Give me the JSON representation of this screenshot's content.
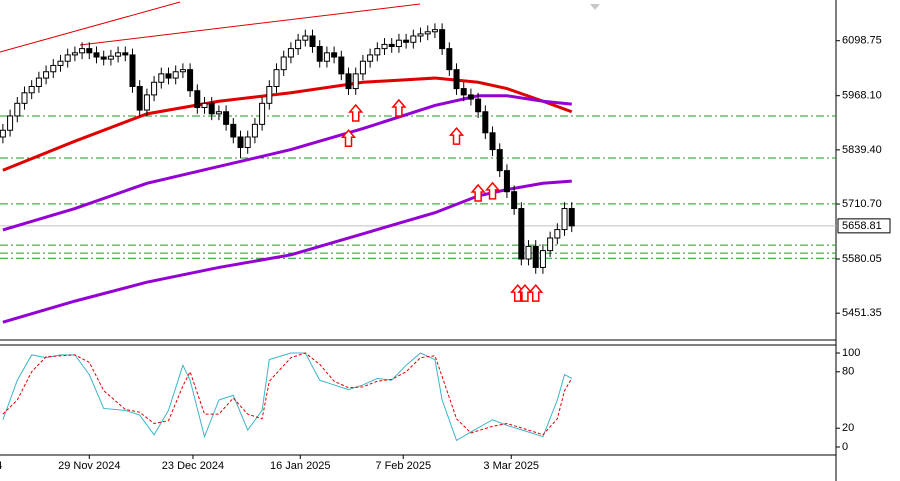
{
  "chart_data": [
    {
      "type": "candlestick",
      "xlim": [
        -0.4,
        115.7
      ],
      "ylim": [
        5387.6,
        6195.5
      ],
      "yticks": [
        {
          "value": 6098.75,
          "label": "6098.75"
        },
        {
          "value": 5968.1,
          "label": "5968.10"
        },
        {
          "value": 5839.4,
          "label": "5839.40"
        },
        {
          "value": 5710.7,
          "label": "5710.70"
        },
        5580.05,
        5451.35
      ],
      "up_color": "#ffffff",
      "down_color": "#000000",
      "ohlc": [
        [
          5870,
          5901,
          5855,
          5886
        ],
        [
          5886,
          5935,
          5871,
          5920
        ],
        [
          5920,
          5965,
          5905,
          5950
        ],
        [
          5950,
          5990,
          5935,
          5975
        ],
        [
          5975,
          6005,
          5960,
          5990
        ],
        [
          5990,
          6025,
          5975,
          6010
        ],
        [
          6010,
          6040,
          5995,
          6025
        ],
        [
          6025,
          6055,
          6010,
          6040
        ],
        [
          6040,
          6065,
          6025,
          6050
        ],
        [
          6050,
          6080,
          6035,
          6065
        ],
        [
          6065,
          6085,
          6050,
          6070
        ],
        [
          6070,
          6095,
          6055,
          6080
        ],
        [
          6080,
          6095,
          6055,
          6070
        ],
        [
          6070,
          6085,
          6045,
          6060
        ],
        [
          6060,
          6075,
          6040,
          6055
        ],
        [
          6055,
          6077,
          6040,
          6062
        ],
        [
          6062,
          6085,
          6047,
          6070
        ],
        [
          6070,
          6085,
          6050,
          6065
        ],
        [
          6065,
          6080,
          5975,
          5990
        ],
        [
          5990,
          6005,
          5919,
          5934
        ],
        [
          5934,
          5985,
          5919,
          5970
        ],
        [
          5970,
          6015,
          5955,
          6000
        ],
        [
          6000,
          6035,
          5985,
          6020
        ],
        [
          6020,
          6035,
          5995,
          6010
        ],
        [
          6010,
          6040,
          5995,
          6025
        ],
        [
          6025,
          6045,
          6010,
          6030
        ],
        [
          6030,
          6045,
          5965,
          5980
        ],
        [
          5980,
          5995,
          5925,
          5940
        ],
        [
          5940,
          5965,
          5925,
          5950
        ],
        [
          5950,
          5965,
          5910,
          5925
        ],
        [
          5925,
          5945,
          5910,
          5930
        ],
        [
          5930,
          5945,
          5885,
          5900
        ],
        [
          5900,
          5915,
          5855,
          5870
        ],
        [
          5870,
          5885,
          5820,
          5845
        ],
        [
          5845,
          5885,
          5830,
          5870
        ],
        [
          5870,
          5915,
          5855,
          5900
        ],
        [
          5900,
          5965,
          5885,
          5950
        ],
        [
          5950,
          6005,
          5935,
          5990
        ],
        [
          5990,
          6045,
          5975,
          6030
        ],
        [
          6030,
          6075,
          6015,
          6060
        ],
        [
          6060,
          6095,
          6045,
          6080
        ],
        [
          6080,
          6115,
          6065,
          6100
        ],
        [
          6100,
          6125,
          6085,
          6110
        ],
        [
          6110,
          6125,
          6070,
          6085
        ],
        [
          6085,
          6100,
          6035,
          6050
        ],
        [
          6050,
          6085,
          6035,
          6070
        ],
        [
          6070,
          6085,
          6045,
          6060
        ],
        [
          6060,
          6075,
          6005,
          6020
        ],
        [
          6020,
          6035,
          5970,
          5985
        ],
        [
          5985,
          6035,
          5970,
          6020
        ],
        [
          6020,
          6065,
          6005,
          6050
        ],
        [
          6050,
          6080,
          6035,
          6065
        ],
        [
          6065,
          6095,
          6050,
          6080
        ],
        [
          6080,
          6105,
          6065,
          6090
        ],
        [
          6090,
          6105,
          6070,
          6085
        ],
        [
          6085,
          6115,
          6070,
          6100
        ],
        [
          6100,
          6115,
          6080,
          6095
        ],
        [
          6095,
          6125,
          6080,
          6110
        ],
        [
          6110,
          6130,
          6095,
          6115
        ],
        [
          6115,
          6135,
          6100,
          6120
        ],
        [
          6120,
          6140,
          6105,
          6125
        ],
        [
          6125,
          6140,
          6065,
          6080
        ],
        [
          6080,
          6095,
          6015,
          6030
        ],
        [
          6030,
          6045,
          5970,
          5985
        ],
        [
          5985,
          6000,
          5955,
          5970
        ],
        [
          5970,
          5985,
          5945,
          5960
        ],
        [
          5960,
          5975,
          5915,
          5930
        ],
        [
          5930,
          5945,
          5865,
          5880
        ],
        [
          5880,
          5895,
          5825,
          5840
        ],
        [
          5840,
          5855,
          5775,
          5790
        ],
        [
          5790,
          5805,
          5725,
          5740
        ],
        [
          5740,
          5755,
          5685,
          5700
        ],
        [
          5700,
          5715,
          5565,
          5580
        ],
        [
          5580,
          5625,
          5565,
          5610
        ],
        [
          5610,
          5625,
          5545,
          5560
        ],
        [
          5560,
          5615,
          5545,
          5600
        ],
        [
          5600,
          5645,
          5585,
          5630
        ],
        [
          5630,
          5665,
          5615,
          5650
        ],
        [
          5650,
          5715,
          5635,
          5700
        ],
        [
          5700,
          5715,
          5644,
          5658.81
        ]
      ],
      "overlays": [
        {
          "color": "#e00000",
          "x": [
            0,
            10,
            20,
            30,
            40,
            50,
            60,
            66,
            70,
            75,
            79
          ],
          "values": [
            5791,
            5860,
            5925,
            5955,
            5975,
            6000,
            6010,
            6000,
            5985,
            5955,
            5930
          ]
        },
        {
          "color": "#9400d3",
          "x": [
            0,
            10,
            20,
            30,
            40,
            50,
            60,
            66,
            70,
            75,
            79
          ],
          "values": [
            5649,
            5700,
            5760,
            5800,
            5840,
            5890,
            5945,
            5968,
            5968,
            5955,
            5948
          ]
        },
        {
          "color": "#9400d3",
          "x": [
            0,
            10,
            20,
            30,
            40,
            50,
            60,
            66,
            70,
            75,
            79
          ],
          "values": [
            5430,
            5480,
            5525,
            5560,
            5590,
            5640,
            5690,
            5730,
            5745,
            5760,
            5765
          ]
        }
      ],
      "levels": [
        5920,
        5820,
        5711,
        5613,
        5594,
        5582
      ],
      "level_color": "#1a9a1a",
      "current_price": 5658.81,
      "signals": {
        "color": "#ff0000",
        "x": [
          48,
          49,
          55,
          63,
          66,
          68,
          71.5,
          72.5,
          74
        ],
        "values": [
          5886,
          5946,
          5958,
          5891,
          5756,
          5761,
          5518,
          5518,
          5518
        ]
      }
    },
    {
      "type": "line",
      "xlim": [
        -0.4,
        115.7
      ],
      "xticks": [
        {
          "value": -0.5,
          "label": "4"
        },
        {
          "value": 12,
          "label": "29 Nov 2024"
        },
        {
          "value": 26.4,
          "label": "23 Dec 2024"
        },
        {
          "value": 41.3,
          "label": "16 Jan 2025"
        },
        {
          "value": 55.6,
          "label": "7 Feb 2025"
        },
        {
          "value": 70.6,
          "label": "3 Mar 2025"
        }
      ],
      "ylim": [
        -8.5,
        108.5
      ],
      "yticks": [
        100,
        80,
        20,
        0
      ],
      "x": [
        0,
        2,
        4,
        6,
        8,
        10,
        12,
        14,
        17,
        19,
        21,
        23,
        25,
        26,
        28,
        30,
        32,
        34,
        36,
        37,
        40,
        42,
        44,
        46,
        48,
        50,
        52,
        54,
        56,
        58,
        60,
        61,
        63,
        65,
        68,
        70,
        73,
        75,
        77,
        78,
        79
      ],
      "series": [
        {
          "color": "#3cb4c8",
          "dashed": false,
          "values": [
            29,
            71,
            98,
            95,
            98,
            98,
            77,
            41,
            39,
            34,
            13,
            39,
            87,
            71,
            11,
            50,
            55,
            18,
            39,
            93,
            100,
            100,
            71,
            66,
            61,
            66,
            73,
            71,
            87,
            100,
            93,
            50,
            7,
            16,
            29,
            23,
            16,
            11,
            50,
            77,
            73
          ]
        },
        {
          "color": "#e00000",
          "dashed": true,
          "values": [
            35,
            50,
            80,
            96,
            97,
            98,
            90,
            60,
            40,
            37,
            25,
            28,
            65,
            80,
            35,
            35,
            52,
            35,
            30,
            70,
            95,
            100,
            88,
            70,
            63,
            64,
            70,
            72,
            80,
            95,
            97,
            75,
            30,
            15,
            22,
            25,
            18,
            13,
            30,
            60,
            73
          ]
        }
      ]
    }
  ]
}
